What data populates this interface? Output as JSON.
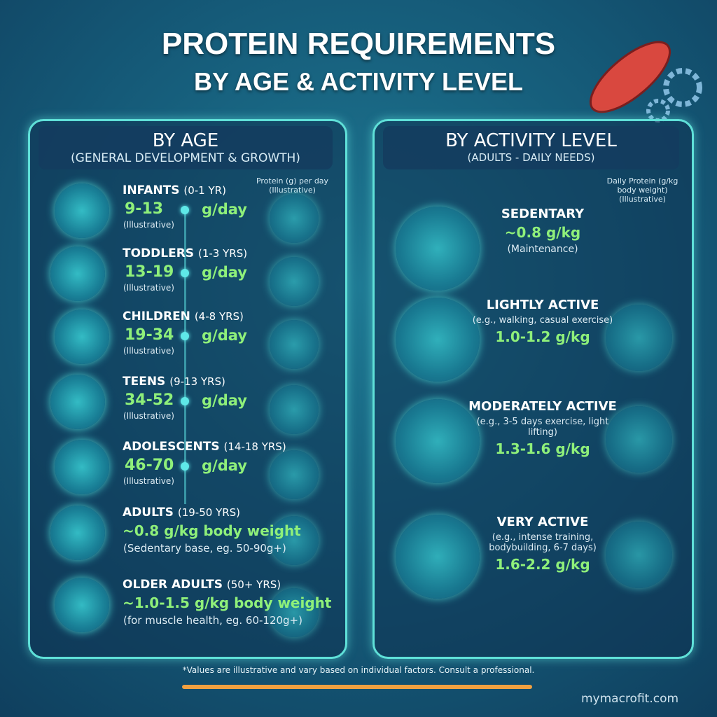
{
  "header": {
    "title_line1": "PROTEIN REQUIREMENTS",
    "title_line2": "BY AGE & ACTIVITY LEVEL"
  },
  "age": {
    "title": "BY AGE",
    "subtitle": "(GENERAL DEVELOPMENT & GROWTH)",
    "note": "Protein (g) per day (Illustrative)",
    "groups": [
      {
        "name": "INFANTS",
        "range": "(0-1 YR)",
        "amount": "9-13",
        "unit": "g/day",
        "note": "(Illustrative)"
      },
      {
        "name": "TODDLERS",
        "range": "(1-3 YRS)",
        "amount": "13-19",
        "unit": "g/day",
        "note": "(Illustrative)"
      },
      {
        "name": "CHILDREN",
        "range": "(4-8 YRS)",
        "amount": "19-34",
        "unit": "g/day",
        "note": "(Illustrative)"
      },
      {
        "name": "TEENS",
        "range": "(9-13 YRS)",
        "amount": "34-52",
        "unit": "g/day",
        "note": "(Illustrative)"
      },
      {
        "name": "ADOLESCENTS",
        "range": "(14-18 YRS)",
        "amount": "46-70",
        "unit": "g/day",
        "note": "(Illustrative)"
      },
      {
        "name": "ADULTS",
        "range": "(19-50 YRS)",
        "amount": "~0.8 g/kg body weight",
        "note": "(Sedentary base, eg. 50-90g+)"
      },
      {
        "name": "OLDER ADULTS",
        "range": "(50+ YRS)",
        "amount": "~1.0-1.5 g/kg body weight",
        "note": "(for muscle health, eg. 60-120g+)"
      }
    ]
  },
  "activity": {
    "title": "BY ACTIVITY LEVEL",
    "subtitle": "(ADULTS - DAILY NEEDS)",
    "note": "Daily Protein (g/kg body weight) (Illustrative)",
    "levels": [
      {
        "name": "SEDENTARY",
        "amount": "~0.8 g/kg",
        "note": "(Maintenance)"
      },
      {
        "name": "LIGHTLY ACTIVE",
        "desc": "(e.g., walking, casual exercise)",
        "amount": "1.0-1.2 g/kg"
      },
      {
        "name": "MODERATELY ACTIVE",
        "desc": "(e.g., 3-5 days exercise, light lifting)",
        "amount": "1.3-1.6 g/kg"
      },
      {
        "name": "VERY ACTIVE",
        "desc": "(e.g., intense training, bodybuilding, 6-7 days)",
        "amount": "1.6-2.2 g/kg"
      }
    ]
  },
  "footer": {
    "disclaimer": "*Values are illustrative and vary based on individual factors. Consult a professional.",
    "site": "mymacrofit.com"
  }
}
